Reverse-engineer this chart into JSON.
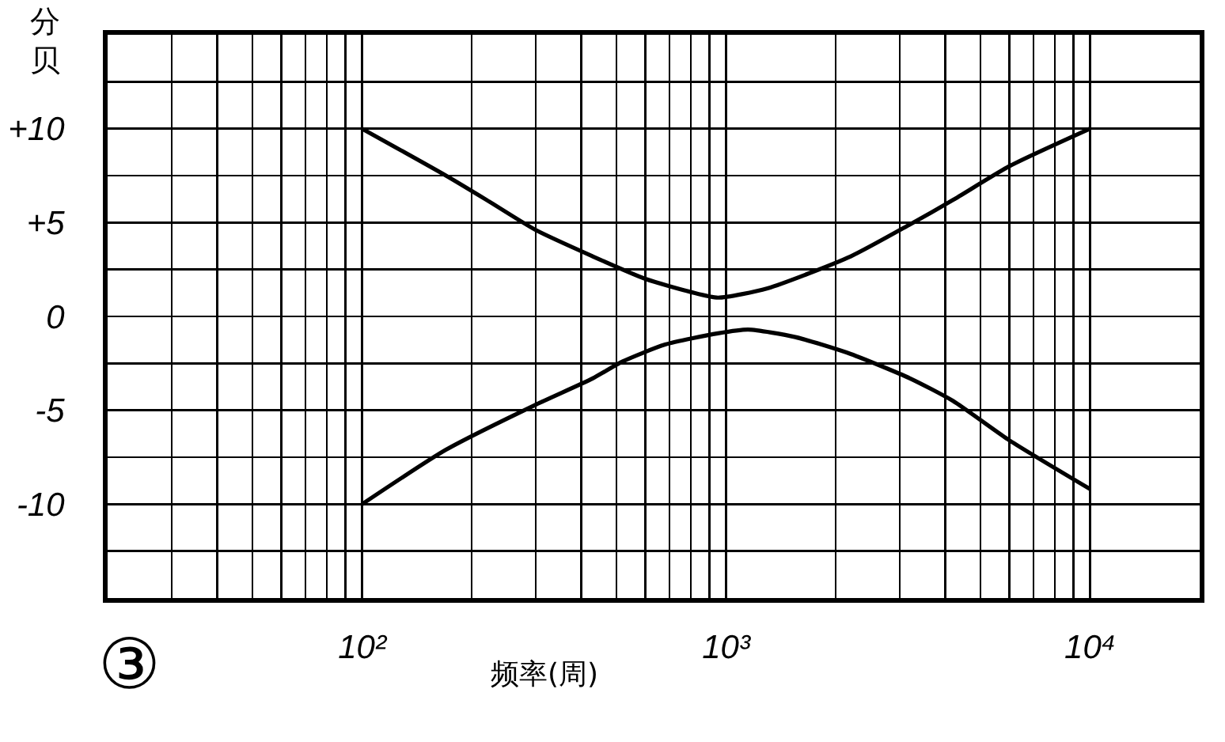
{
  "chart_data": {
    "type": "line",
    "ylabel": "分贝",
    "xlabel": "频率(周)",
    "annotations": [
      "③"
    ],
    "log": "x",
    "xlim": [
      20,
      20000
    ],
    "xticks": [
      {
        "value": 20,
        "label": null
      },
      {
        "value": 30,
        "label": null
      },
      {
        "value": 40,
        "label": null
      },
      {
        "value": 50,
        "label": null
      },
      {
        "value": 60,
        "label": null
      },
      {
        "value": 70,
        "label": null
      },
      {
        "value": 80,
        "label": null
      },
      {
        "value": 90,
        "label": null
      },
      {
        "value": 100,
        "label": "10²"
      },
      {
        "value": 200,
        "label": null
      },
      {
        "value": 300,
        "label": null
      },
      {
        "value": 400,
        "label": null
      },
      {
        "value": 500,
        "label": null
      },
      {
        "value": 600,
        "label": null
      },
      {
        "value": 700,
        "label": null
      },
      {
        "value": 800,
        "label": null
      },
      {
        "value": 900,
        "label": null
      },
      {
        "value": 1000,
        "label": "10³"
      },
      {
        "value": 2000,
        "label": null
      },
      {
        "value": 3000,
        "label": null
      },
      {
        "value": 4000,
        "label": null
      },
      {
        "value": 5000,
        "label": null
      },
      {
        "value": 6000,
        "label": null
      },
      {
        "value": 7000,
        "label": null
      },
      {
        "value": 8000,
        "label": null
      },
      {
        "value": 9000,
        "label": null
      },
      {
        "value": 10000,
        "label": "10⁴"
      },
      {
        "value": 20000,
        "label": null
      }
    ],
    "ylim": [
      -15,
      15
    ],
    "yticks": [
      {
        "value": -15,
        "label": null
      },
      {
        "value": -12.5,
        "label": null
      },
      {
        "value": -10,
        "label": "-10"
      },
      {
        "value": -7.5,
        "label": null
      },
      {
        "value": -5,
        "label": "-5"
      },
      {
        "value": -2.5,
        "label": null
      },
      0,
      {
        "value": 2.5,
        "label": null
      },
      {
        "value": 5,
        "label": "+5"
      },
      {
        "value": 7.5,
        "label": null
      },
      {
        "value": 10,
        "label": "+10"
      },
      {
        "value": 12.5,
        "label": null
      },
      {
        "value": 15,
        "label": null
      }
    ],
    "grid": true,
    "marker": "none",
    "line_style": "solid",
    "series": [
      {
        "color": "#000000",
        "x": [
          100,
          170,
          220,
          300,
          430,
          600,
          800,
          950,
          1300,
          2200,
          3200,
          4200,
          6000,
          10000
        ],
        "values": [
          10,
          7.5,
          6.2,
          4.6,
          3.2,
          2.0,
          1.3,
          1.0,
          1.5,
          3.2,
          4.9,
          6.2,
          8.0,
          10
        ]
      },
      {
        "color": "#000000",
        "x": [
          100,
          170,
          300,
          430,
          520,
          680,
          950,
          1150,
          1550,
          2200,
          3200,
          4200,
          6000,
          10000
        ],
        "values": [
          -10,
          -7.1,
          -4.7,
          -3.3,
          -2.4,
          -1.5,
          -0.9,
          -0.7,
          -1.1,
          -2.0,
          -3.3,
          -4.5,
          -6.6,
          -9.2
        ]
      }
    ]
  }
}
